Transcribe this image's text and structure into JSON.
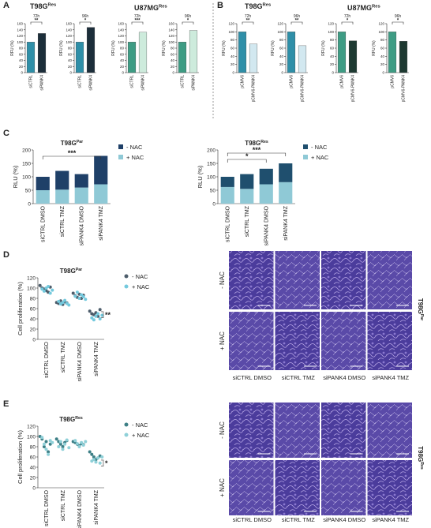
{
  "panel_labels": [
    "A",
    "B",
    "C",
    "D",
    "E"
  ],
  "group_titles": [
    {
      "text": "T98G",
      "sup": "Res"
    },
    {
      "text": "U87MG",
      "sup": "Res"
    },
    {
      "text": "T98G",
      "sup": "Res"
    },
    {
      "text": "U87MG",
      "sup": "Res"
    }
  ],
  "chart_data": [
    {
      "type": "bar",
      "subtitle": "72h",
      "ylabel": "RFU (%)",
      "categories": [
        "siCTRL",
        "siPANK4"
      ],
      "values": [
        100,
        128
      ],
      "colors": [
        "#2f8fa8",
        "#1c2e3a"
      ],
      "ylim": [
        0,
        160
      ],
      "yticks": [
        0,
        20,
        40,
        60,
        80,
        100,
        120,
        140,
        160
      ],
      "significance": "**"
    },
    {
      "type": "bar",
      "subtitle": "96h",
      "ylabel": "RFU (%)",
      "categories": [
        "siCTRL",
        "siPANK4"
      ],
      "values": [
        100,
        148
      ],
      "colors": [
        "#2f8fa8",
        "#1c2e3a"
      ],
      "ylim": [
        0,
        160
      ],
      "yticks": [
        0,
        20,
        40,
        60,
        80,
        100,
        120,
        140,
        160
      ],
      "significance": "*"
    },
    {
      "type": "bar",
      "subtitle": "72h",
      "ylabel": "RFU (%)",
      "categories": [
        "siCTRL",
        "siPANK4"
      ],
      "values": [
        100,
        132
      ],
      "colors": [
        "#3e9c84",
        "#cdebdc"
      ],
      "ylim": [
        0,
        160
      ],
      "yticks": [
        0,
        20,
        40,
        60,
        80,
        100,
        120,
        140,
        160
      ],
      "significance": "***"
    },
    {
      "type": "bar",
      "subtitle": "96h",
      "ylabel": "RFU (%)",
      "categories": [
        "siCTRL",
        "siPANK4"
      ],
      "values": [
        100,
        138
      ],
      "colors": [
        "#3e9c84",
        "#cdebdc"
      ],
      "ylim": [
        0,
        160
      ],
      "yticks": [
        0,
        20,
        40,
        60,
        80,
        100,
        120,
        140,
        160
      ],
      "significance": "*"
    },
    {
      "type": "bar",
      "subtitle": "72h",
      "ylabel": "RFU (%)",
      "categories": [
        "pCMV6",
        "pCMV6-PANK4"
      ],
      "values": [
        100,
        70
      ],
      "colors": [
        "#2f8fa8",
        "#d2e8f0"
      ],
      "ylim": [
        0,
        120
      ],
      "yticks": [
        0,
        20,
        40,
        60,
        80,
        100,
        120
      ],
      "significance": "**"
    },
    {
      "type": "bar",
      "subtitle": "96h",
      "ylabel": "RFU (%)",
      "categories": [
        "pCMV6",
        "pCMV6-PANK4"
      ],
      "values": [
        100,
        66
      ],
      "colors": [
        "#2f8fa8",
        "#d2e8f0"
      ],
      "ylim": [
        0,
        120
      ],
      "yticks": [
        0,
        20,
        40,
        60,
        80,
        100,
        120
      ],
      "significance": "**"
    },
    {
      "type": "bar",
      "subtitle": "72h",
      "ylabel": "RFU (%)",
      "categories": [
        "pCMV6",
        "pCMV6-PANK4"
      ],
      "values": [
        100,
        78
      ],
      "colors": [
        "#3e9c84",
        "#1e3a32"
      ],
      "ylim": [
        0,
        120
      ],
      "yticks": [
        0,
        20,
        40,
        60,
        80,
        100,
        120
      ],
      "significance": "*"
    },
    {
      "type": "bar",
      "subtitle": "96h",
      "ylabel": "RFU (%)",
      "categories": [
        "pCMV6",
        "pCMV6-PANK4"
      ],
      "values": [
        100,
        77
      ],
      "colors": [
        "#3e9c84",
        "#1e3a32"
      ],
      "ylim": [
        0,
        120
      ],
      "yticks": [
        0,
        20,
        40,
        60,
        80,
        100,
        120
      ],
      "significance": "*"
    },
    {
      "type": "stacked_bar",
      "title": "T98G",
      "title_sup": "Par",
      "ylabel": "RLU (%)",
      "categories": [
        "siCTRL DMSO",
        "siCTRL TMZ",
        "siPANK4 DMSO",
        "siPANK4 TMZ"
      ],
      "series": [
        {
          "name": "- NAC",
          "color": "#1f4068",
          "values": [
            50,
            70,
            50,
            106
          ]
        },
        {
          "name": "+ NAC",
          "color": "#8fc9d6",
          "values": [
            50,
            52,
            60,
            72
          ]
        }
      ],
      "ylim": [
        0,
        200
      ],
      "yticks": [
        0,
        50,
        100,
        150,
        200
      ],
      "significance": [
        "***"
      ]
    },
    {
      "type": "stacked_bar",
      "title": "T98G",
      "title_sup": "Res",
      "ylabel": "RLU (%)",
      "categories": [
        "siCTRL DMSO",
        "siCTRL TMZ",
        "siPANK4 DMSO",
        "siPANK4 TMZ"
      ],
      "series": [
        {
          "name": "- NAC",
          "color": "#1f4f6e",
          "values": [
            38,
            55,
            58,
            70
          ]
        },
        {
          "name": "+ NAC",
          "color": "#8fc9d6",
          "values": [
            62,
            55,
            72,
            80
          ]
        }
      ],
      "ylim": [
        0,
        200
      ],
      "yticks": [
        0,
        50,
        100,
        150,
        200
      ],
      "significance": [
        "*",
        "***"
      ]
    },
    {
      "type": "dot",
      "title": "T98G",
      "title_sup": "Par",
      "ylabel": "Cell proliferation (%)",
      "categories": [
        "siCTRL DMSO",
        "siCTRL TMZ",
        "siPANK4 DMSO",
        "siPANK4 TMZ"
      ],
      "series": [
        {
          "name": "- NAC",
          "color": "#4d5d6b",
          "values": [
            [
              105,
              100,
              98,
              95,
              92,
              102
            ],
            [
              72,
              70,
              75,
              68,
              73,
              71
            ],
            [
              90,
              85,
              82,
              88,
              80,
              86
            ],
            [
              55,
              50,
              48,
              52,
              45,
              58
            ]
          ]
        },
        {
          "name": "+ NAC",
          "color": "#74c9dd",
          "values": [
            [
              98,
              94,
              100,
              103,
              90,
              96
            ],
            [
              74,
              69,
              72,
              76,
              70,
              67
            ],
            [
              84,
              92,
              80,
              87,
              83,
              78
            ],
            [
              42,
              38,
              45,
              50,
              40,
              47
            ]
          ]
        }
      ],
      "ylim": [
        0,
        120
      ],
      "yticks": [
        0,
        20,
        40,
        60,
        80,
        100,
        120
      ],
      "significance": "**"
    },
    {
      "type": "dot",
      "title": "T98G",
      "title_sup": "Res",
      "ylabel": "Cell proliferation (%)",
      "categories": [
        "siCTRL DMSO",
        "siCTRL TMZ",
        "siPANK4 DMSO",
        "siPANK4 TMZ"
      ],
      "series": [
        {
          "name": "- NAC",
          "color": "#3d7f86",
          "values": [
            [
              100,
              95,
              80,
              90,
              70,
              85
            ],
            [
              95,
              90,
              85,
              80,
              88,
              92
            ],
            [
              90,
              88,
              85,
              82,
              86,
              84
            ],
            [
              70,
              65,
              60,
              55,
              58,
              62
            ]
          ]
        },
        {
          "name": "+ NAC",
          "color": "#8fd0d8",
          "values": [
            [
              98,
              85,
              75,
              65,
              92,
              88
            ],
            [
              80,
              90,
              75,
              85,
              93,
              78
            ],
            [
              92,
              86,
              80,
              88,
              83,
              90
            ],
            [
              52,
              55,
              50,
              58,
              48,
              60
            ]
          ]
        }
      ],
      "ylim": [
        0,
        120
      ],
      "yticks": [
        0,
        20,
        40,
        60,
        80,
        100,
        120
      ],
      "significance": "*"
    }
  ],
  "images": [
    {
      "row_labels": [
        "- NAC",
        "+ NAC"
      ],
      "column_labels": [
        "siCTRL DMSO",
        "siCTRL TMZ",
        "siPANK4 DMSO",
        "siPANK4 TMZ"
      ],
      "cell_line": "T98G",
      "cell_line_sup": "Par"
    },
    {
      "row_labels": [
        "- NAC",
        "+ NAC"
      ],
      "column_labels": [
        "siCTRL DMSO",
        "siCTRL TMZ",
        "siPANK4 DMSO",
        "siPANK4 TMZ"
      ],
      "cell_line": "T98G",
      "cell_line_sup": "Res"
    }
  ]
}
